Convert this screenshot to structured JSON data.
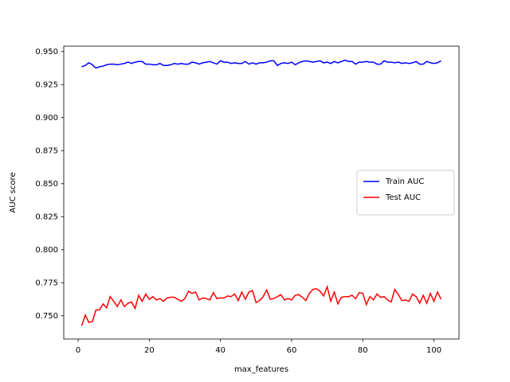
{
  "chart_data": {
    "type": "line",
    "xlabel": "max_features",
    "ylabel": "AUC score",
    "x": [
      1,
      2,
      3,
      4,
      5,
      6,
      7,
      8,
      9,
      10,
      11,
      12,
      13,
      14,
      15,
      16,
      17,
      18,
      19,
      20,
      21,
      22,
      23,
      24,
      25,
      26,
      27,
      28,
      29,
      30,
      31,
      32,
      33,
      34,
      35,
      36,
      37,
      38,
      39,
      40,
      41,
      42,
      43,
      44,
      45,
      46,
      47,
      48,
      49,
      50,
      51,
      52,
      53,
      54,
      55,
      56,
      57,
      58,
      59,
      60,
      61,
      62,
      63,
      64,
      65,
      66,
      67,
      68,
      69,
      70,
      71,
      72,
      73,
      74,
      75,
      76,
      77,
      78,
      79,
      80,
      81,
      82,
      83,
      84,
      85,
      86,
      87,
      88,
      89,
      90,
      91,
      92,
      93,
      94,
      95,
      96,
      97,
      98,
      99,
      100,
      101,
      102
    ],
    "series": [
      {
        "name": "Train AUC",
        "color": "#0000ff",
        "values": [
          0.9385,
          0.9395,
          0.9415,
          0.94,
          0.9375,
          0.9385,
          0.939,
          0.94,
          0.9405,
          0.9405,
          0.94,
          0.9405,
          0.941,
          0.942,
          0.941,
          0.942,
          0.9425,
          0.9425,
          0.9405,
          0.9405,
          0.94,
          0.94,
          0.941,
          0.9395,
          0.9395,
          0.94,
          0.941,
          0.9405,
          0.941,
          0.9405,
          0.9405,
          0.942,
          0.9415,
          0.9405,
          0.9415,
          0.942,
          0.9425,
          0.9415,
          0.9405,
          0.943,
          0.942,
          0.942,
          0.941,
          0.9415,
          0.941,
          0.941,
          0.9425,
          0.9405,
          0.9415,
          0.9405,
          0.9415,
          0.9415,
          0.942,
          0.943,
          0.943,
          0.9395,
          0.941,
          0.9415,
          0.941,
          0.942,
          0.94,
          0.9415,
          0.9425,
          0.943,
          0.9425,
          0.942,
          0.9425,
          0.943,
          0.9415,
          0.942,
          0.941,
          0.9425,
          0.9415,
          0.9425,
          0.9435,
          0.9425,
          0.9425,
          0.9405,
          0.942,
          0.942,
          0.9425,
          0.942,
          0.942,
          0.9405,
          0.9405,
          0.943,
          0.942,
          0.942,
          0.9415,
          0.942,
          0.941,
          0.9415,
          0.941,
          0.9415,
          0.9425,
          0.9405,
          0.9405,
          0.9425,
          0.9415,
          0.941,
          0.9415,
          0.943
        ]
      },
      {
        "name": "Test AUC",
        "color": "#ff0000",
        "values": [
          0.7425,
          0.7505,
          0.745,
          0.7455,
          0.7545,
          0.7545,
          0.759,
          0.756,
          0.7645,
          0.761,
          0.757,
          0.762,
          0.757,
          0.7595,
          0.7605,
          0.7555,
          0.7655,
          0.761,
          0.7665,
          0.7625,
          0.7645,
          0.762,
          0.763,
          0.761,
          0.7635,
          0.764,
          0.764,
          0.7625,
          0.761,
          0.763,
          0.7685,
          0.767,
          0.768,
          0.762,
          0.7635,
          0.763,
          0.762,
          0.7675,
          0.763,
          0.7635,
          0.7635,
          0.765,
          0.7645,
          0.7665,
          0.7615,
          0.768,
          0.7625,
          0.768,
          0.769,
          0.76,
          0.7615,
          0.7645,
          0.7695,
          0.7625,
          0.763,
          0.7645,
          0.766,
          0.762,
          0.763,
          0.762,
          0.7655,
          0.766,
          0.764,
          0.7615,
          0.767,
          0.77,
          0.7705,
          0.7685,
          0.765,
          0.772,
          0.761,
          0.768,
          0.759,
          0.764,
          0.7645,
          0.7645,
          0.7655,
          0.763,
          0.7675,
          0.767,
          0.7585,
          0.7645,
          0.762,
          0.7665,
          0.764,
          0.7645,
          0.762,
          0.7605,
          0.77,
          0.766,
          0.7615,
          0.762,
          0.761,
          0.7665,
          0.7645,
          0.7595,
          0.7655,
          0.7595,
          0.767,
          0.761,
          0.768,
          0.7625
        ]
      }
    ],
    "xlim": [
      -4.05,
      107.05
    ],
    "xticks": [
      0,
      20,
      40,
      60,
      80,
      100
    ],
    "ylim": [
      0.7324,
      0.9541
    ],
    "yticks": [
      {
        "value": 0.75,
        "label": "0.750"
      },
      {
        "value": 0.775,
        "label": "0.775"
      },
      {
        "value": 0.8,
        "label": "0.800"
      },
      {
        "value": 0.825,
        "label": "0.825"
      },
      {
        "value": 0.85,
        "label": "0.850"
      },
      {
        "value": 0.875,
        "label": "0.875"
      },
      {
        "value": 0.9,
        "label": "0.900"
      },
      {
        "value": 0.925,
        "label": "0.925"
      },
      {
        "value": 0.95,
        "label": "0.950"
      }
    ],
    "legend": "center right"
  }
}
